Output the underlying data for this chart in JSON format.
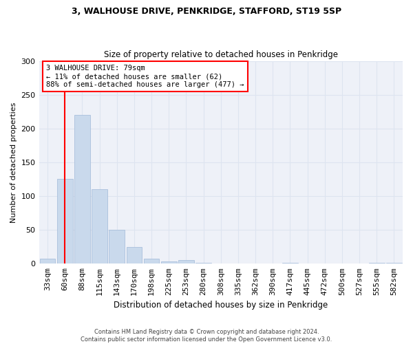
{
  "title1": "3, WALHOUSE DRIVE, PENKRIDGE, STAFFORD, ST19 5SP",
  "title2": "Size of property relative to detached houses in Penkridge",
  "xlabel": "Distribution of detached houses by size in Penkridge",
  "ylabel": "Number of detached properties",
  "bin_labels": [
    "33sqm",
    "60sqm",
    "88sqm",
    "115sqm",
    "143sqm",
    "170sqm",
    "198sqm",
    "225sqm",
    "253sqm",
    "280sqm",
    "308sqm",
    "335sqm",
    "362sqm",
    "390sqm",
    "417sqm",
    "445sqm",
    "472sqm",
    "500sqm",
    "527sqm",
    "555sqm",
    "582sqm"
  ],
  "bar_heights": [
    7,
    125,
    220,
    110,
    50,
    25,
    7,
    3,
    5,
    1,
    0,
    0,
    0,
    0,
    1,
    0,
    0,
    0,
    0,
    1,
    1
  ],
  "bar_color": "#c9d9ec",
  "bar_edge_color": "#a0b8d8",
  "vline_x": 1.5,
  "annotation_text": "3 WALHOUSE DRIVE: 79sqm\n← 11% of detached houses are smaller (62)\n88% of semi-detached houses are larger (477) →",
  "annotation_box_color": "white",
  "annotation_box_edge_color": "red",
  "vline_color": "red",
  "ylim": [
    0,
    300
  ],
  "yticks": [
    0,
    50,
    100,
    150,
    200,
    250,
    300
  ],
  "grid_color": "#dde4f0",
  "footer_text": "Contains HM Land Registry data © Crown copyright and database right 2024.\nContains public sector information licensed under the Open Government Licence v3.0.",
  "background_color": "#eef1f8"
}
